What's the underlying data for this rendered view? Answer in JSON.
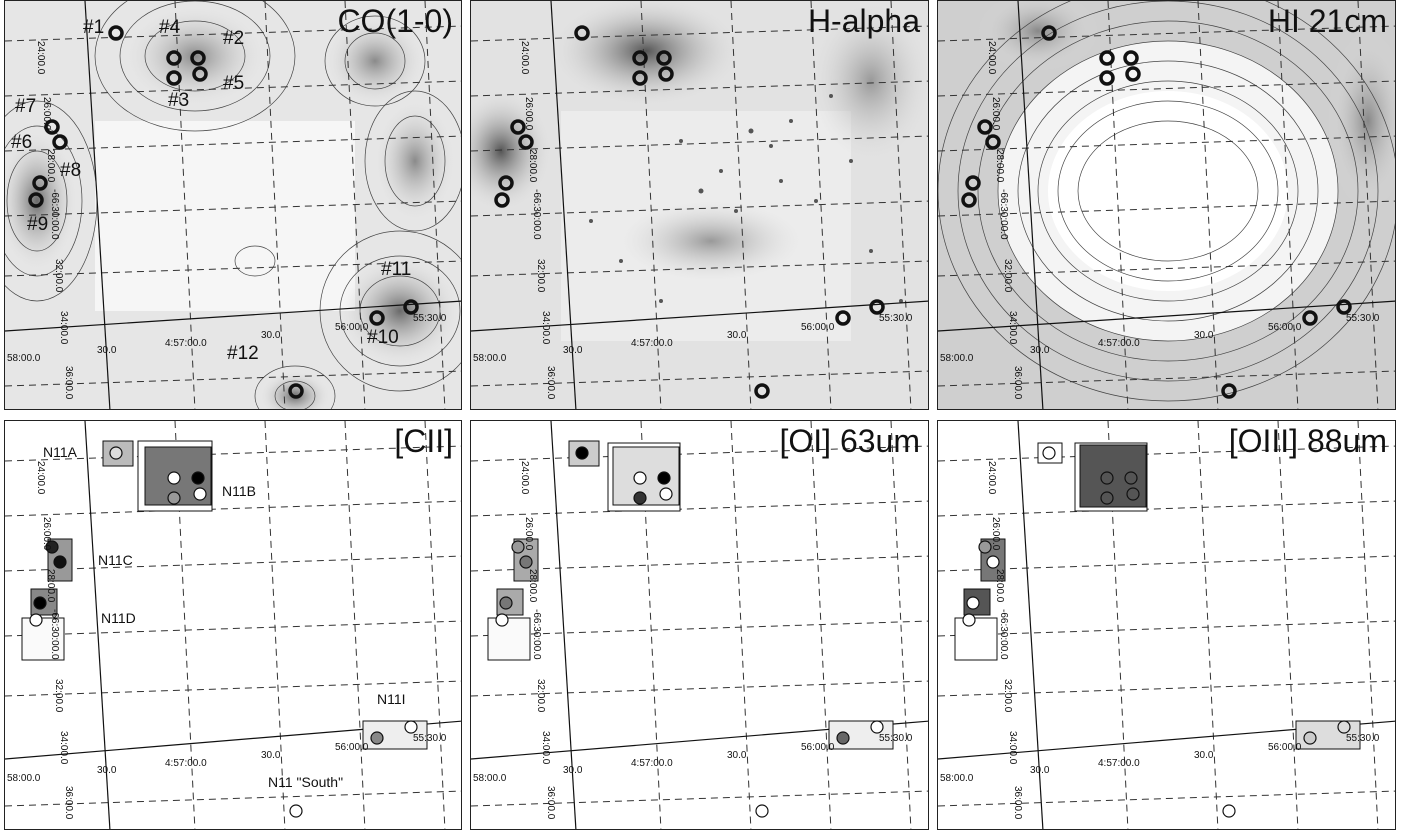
{
  "panels": [
    {
      "id": "co",
      "title": "CO(1-0)",
      "bg": "#e2e2e2",
      "dark": "#555555"
    },
    {
      "id": "ha",
      "title": "H-alpha",
      "bg": "#dcdcdc",
      "dark": "#666666"
    },
    {
      "id": "hi",
      "title": "HI 21cm",
      "bg": "#e6e6e6",
      "dark": "#777777"
    },
    {
      "id": "cii",
      "title": "[CII]",
      "bg": "#ffffff",
      "dark": "#333333"
    },
    {
      "id": "oi",
      "title": "[OI] 63um",
      "bg": "#ffffff",
      "dark": "#333333"
    },
    {
      "id": "oiii",
      "title": "[OIII] 88um",
      "bg": "#ffffff",
      "dark": "#333333"
    }
  ],
  "co_labels": [
    "#1",
    "#2",
    "#3",
    "#4",
    "#5",
    "#6",
    "#7",
    "#8",
    "#9",
    "#10",
    "#11",
    "#12"
  ],
  "regions": [
    "N11A",
    "N11B",
    "N11C",
    "N11D",
    "N11I",
    "N11 \"South\""
  ],
  "ticks": {
    "ra": [
      "58:00.0",
      "30.0",
      "4:57:00.0",
      "30.0",
      "56:00.0",
      "55:30.0"
    ],
    "dec": [
      "24:00.0",
      "26:00.0",
      "28:00.0",
      "-66:30:00.0",
      "32:00.0",
      "34:00.0",
      "36:00.0"
    ]
  },
  "colors": {
    "circle": "#111111",
    "grid": "#333333",
    "contour": "#444444"
  }
}
